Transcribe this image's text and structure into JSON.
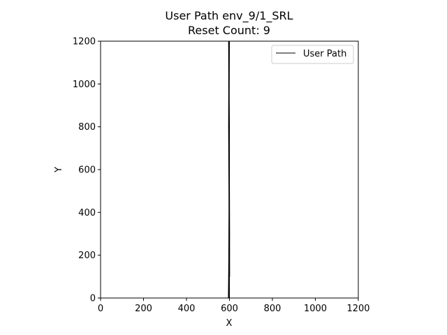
{
  "chart_data": {
    "type": "line",
    "title_line1": "User Path env_9/1_SRL",
    "title_line2": "Reset Count: 9",
    "xlabel": "X",
    "ylabel": "Y",
    "xlim": [
      0,
      1200
    ],
    "ylim": [
      0,
      1200
    ],
    "x_ticks": [
      0,
      200,
      400,
      600,
      800,
      1000,
      1200
    ],
    "y_ticks": [
      0,
      200,
      400,
      600,
      800,
      1000,
      1200
    ],
    "grid": false,
    "legend_position": "top-right",
    "series": [
      {
        "name": "User Path",
        "color": "#000000",
        "segments": [
          {
            "x": [
              595,
              597,
              598,
              599,
              600,
              598,
              596,
              597,
              599,
              601
            ],
            "y": [
              0,
              200,
              400,
              600,
              800,
              1000,
              1200,
              900,
              500,
              100
            ]
          },
          {
            "x": [
              600,
              601,
              600,
              599,
              600
            ],
            "y": [
              0,
              300,
              600,
              900,
              1200
            ]
          },
          {
            "x": [
              597,
              596,
              598,
              597
            ],
            "y": [
              1200,
              800,
              400,
              0
            ]
          }
        ]
      }
    ]
  }
}
